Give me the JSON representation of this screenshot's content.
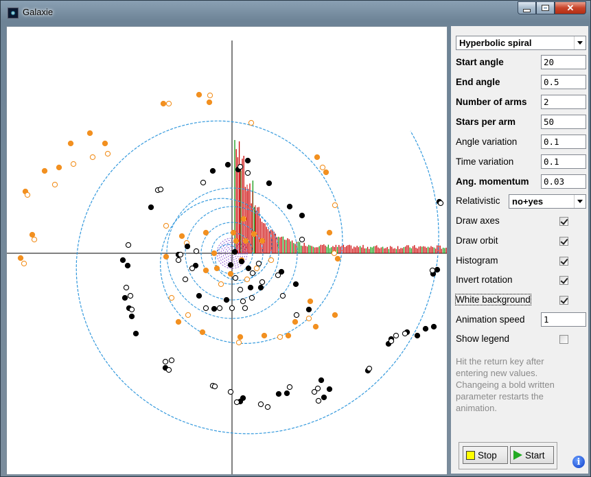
{
  "window": {
    "title": "Galaxie"
  },
  "panel": {
    "model": "Hyperbolic spiral",
    "params": [
      {
        "label": "Start angle",
        "value": "20",
        "bold": true
      },
      {
        "label": "End angle",
        "value": "0.5",
        "bold": true
      },
      {
        "label": "Number of arms",
        "value": "2",
        "bold": true
      },
      {
        "label": "Stars per arm",
        "value": "50",
        "bold": true
      },
      {
        "label": "Angle variation",
        "value": "0.1",
        "bold": false
      },
      {
        "label": "Time variation",
        "value": "0.1",
        "bold": false
      },
      {
        "label": "Ang. momentum",
        "value": "0.03",
        "bold": true
      }
    ],
    "relativistic_label": "Relativistic",
    "relativistic_value": "no+yes",
    "checks": [
      {
        "label": "Draw axes",
        "checked": true
      },
      {
        "label": "Draw orbit",
        "checked": true
      },
      {
        "label": "Histogram",
        "checked": true
      },
      {
        "label": "Invert rotation",
        "checked": true
      },
      {
        "label": "White background",
        "checked": true
      }
    ],
    "animation_label": "Animation speed",
    "animation_value": "1",
    "legend_label": "Show legend",
    "legend_checked": false,
    "help": "Hit the return key after entering new values. Changeing a bold written parameter restarts the animation.",
    "stop_label": "Stop",
    "start_label": "Start"
  },
  "icons": {
    "app": "galaxy-icon",
    "stop": "yellow-square-icon",
    "start": "green-play-icon",
    "info": "info-icon"
  },
  "colors": {
    "orbit": "#3399dd",
    "inner_orbit": "#7733cc",
    "star_orange": "#f29020",
    "star_black": "#000000",
    "hist_red": "#cc0000",
    "hist_green": "#119911"
  }
}
